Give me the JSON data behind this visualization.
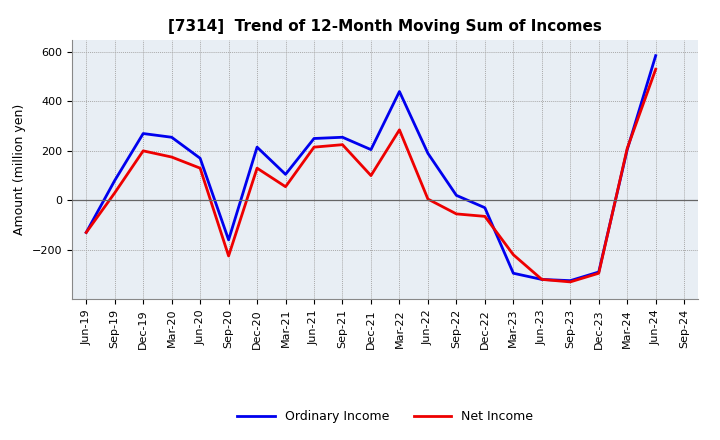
{
  "title": "[7314]  Trend of 12-Month Moving Sum of Incomes",
  "ylabel": "Amount (million yen)",
  "xlabels": [
    "Jun-19",
    "Sep-19",
    "Dec-19",
    "Mar-20",
    "Jun-20",
    "Sep-20",
    "Dec-20",
    "Mar-21",
    "Jun-21",
    "Sep-21",
    "Dec-21",
    "Mar-22",
    "Jun-22",
    "Sep-22",
    "Dec-22",
    "Mar-23",
    "Jun-23",
    "Sep-23",
    "Dec-23",
    "Mar-24",
    "Jun-24",
    "Sep-24"
  ],
  "ordinary_income": [
    -130,
    80,
    270,
    255,
    170,
    -160,
    215,
    105,
    250,
    255,
    205,
    440,
    190,
    20,
    -30,
    -295,
    -320,
    -325,
    -290,
    205,
    585,
    null
  ],
  "net_income": [
    -130,
    30,
    200,
    175,
    130,
    -225,
    130,
    55,
    215,
    225,
    100,
    285,
    5,
    -55,
    -65,
    -220,
    -320,
    -330,
    -295,
    210,
    530,
    null
  ],
  "ordinary_color": "#0000EE",
  "net_color": "#EE0000",
  "ylim": [
    -400,
    650
  ],
  "yticks": [
    -200,
    0,
    200,
    400,
    600
  ],
  "plot_bg_color": "#E8EEF4",
  "fig_bg_color": "#FFFFFF",
  "grid_color": "#AAAAAA",
  "title_fontsize": 11,
  "ylabel_fontsize": 9,
  "tick_fontsize": 8,
  "legend_fontsize": 9,
  "linewidth": 2.0
}
